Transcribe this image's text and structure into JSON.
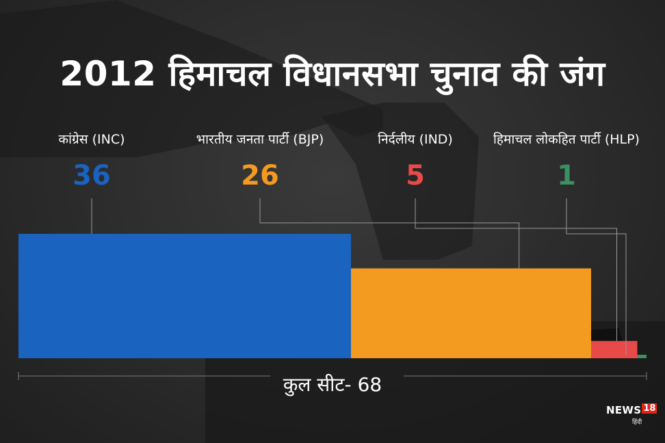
{
  "title": "2012 हिमाचल विधानसभा चुनाव की जंग",
  "total_label": "कुल सीट- 68",
  "brand": {
    "name": "NEWS",
    "number": "18",
    "subtitle": "हिंदी"
  },
  "chart_data": {
    "type": "bar",
    "orientation": "stacked-horizontal",
    "title": "2012 हिमाचल विधानसभा चुनाव की जंग",
    "total": 68,
    "categories": [
      "कांग्रेस (INC)",
      "भारतीय जनता पार्टी (BJP)",
      "निर्दलीय (IND)",
      "हिमाचल लोकहित पार्टी (HLP)"
    ],
    "values": [
      36,
      26,
      5,
      1
    ],
    "colors": [
      "#1a63bf",
      "#f39a21",
      "#e84a4a",
      "#3a8f63"
    ]
  }
}
